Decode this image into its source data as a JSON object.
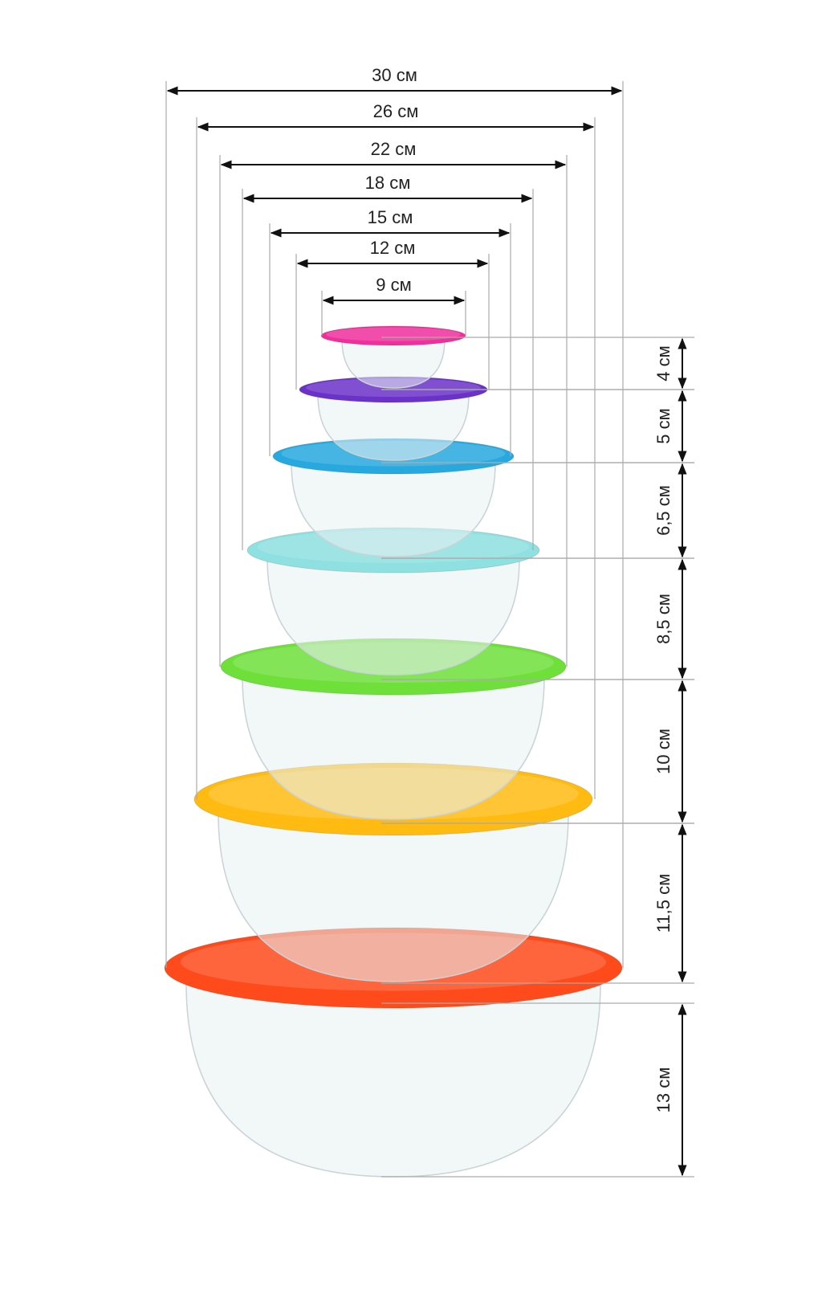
{
  "widths": [
    "30 см",
    "26 см",
    "22 см",
    "18 см",
    "15 см",
    "12 см",
    "9 см"
  ],
  "heights": [
    "4 см",
    "5 см",
    "6,5 см",
    "8,5 см",
    "10 см",
    "11,5 см",
    "13 см"
  ]
}
